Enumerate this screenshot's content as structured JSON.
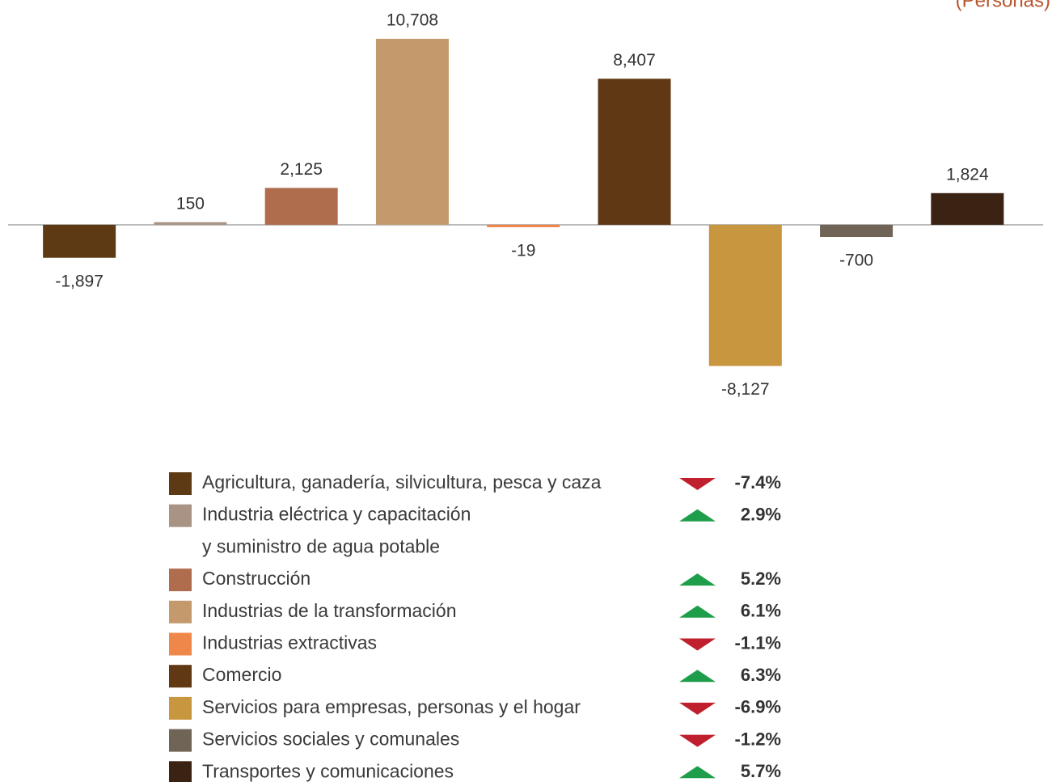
{
  "chart_data": {
    "type": "bar",
    "subtitle": "(Personas)",
    "categories": [
      "Agricultura, ganadería, silvicultura, pesca y caza",
      "Industria eléctrica y capacitación\ny suministro de agua potable",
      "Construcción",
      "Industrias de la transformación",
      "Industrias extractivas",
      "Comercio",
      "Servicios para empresas, personas y el hogar",
      "Servicios sociales y comunales",
      "Transportes y comunicaciones"
    ],
    "values": [
      -1897,
      150,
      2125,
      10708,
      -19,
      8407,
      -8127,
      -700,
      1824
    ],
    "value_labels": [
      "-1,897",
      "150",
      "2,125",
      "10,708",
      "-19",
      "8,407",
      "-8,127",
      "-700",
      "1,824"
    ],
    "colors": [
      "#5e3a14",
      "#a89384",
      "#b06d4e",
      "#c49a6c",
      "#f0874a",
      "#603813",
      "#c8963e",
      "#6f6456",
      "#3b2314"
    ],
    "changes": [
      -7.4,
      2.9,
      5.2,
      6.1,
      -1.1,
      6.3,
      -6.9,
      -1.2,
      5.7
    ],
    "change_labels": [
      "-7.4%",
      "2.9%",
      "5.2%",
      "6.1%",
      "-1.1%",
      "6.3%",
      "-6.9%",
      "-1.2%",
      "5.7%"
    ],
    "ylim": [
      -10000,
      12000
    ],
    "grid": false
  }
}
